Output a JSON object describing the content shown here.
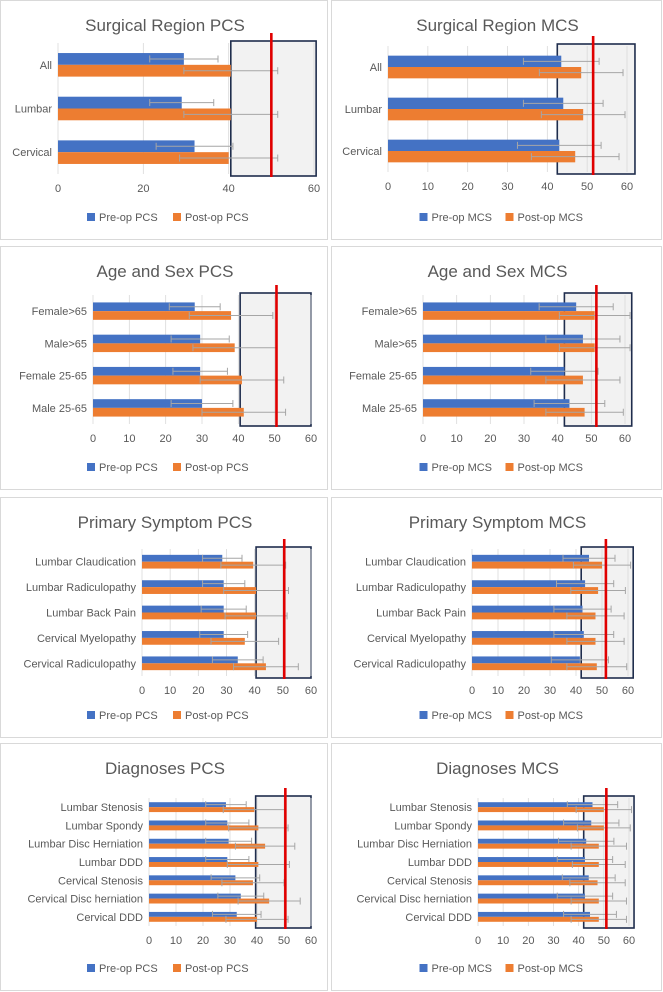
{
  "colors": {
    "pre": "#4472C4",
    "post": "#ED7D31",
    "threshold": "#E00000",
    "norm_band_fill": "#F2F2F2",
    "norm_band_border": "#1F2D4D",
    "axis_text": "#595959",
    "title_text": "#595959",
    "error_bar": "#A6A6A6",
    "gridline": "#D9D9D9"
  },
  "chart_data": [
    {
      "type": "bar",
      "orientation": "horizontal",
      "title": "Surgical Region PCS",
      "categories": [
        "All",
        "Lumbar",
        "Cervical"
      ],
      "series": [
        {
          "name": "Pre-op PCS",
          "values": [
            29.5,
            29,
            32
          ],
          "error": [
            8,
            7.5,
            9
          ]
        },
        {
          "name": "Post-op PCS",
          "values": [
            40.5,
            40.5,
            40
          ],
          "error": [
            11,
            11,
            11.5
          ]
        }
      ],
      "xlim": [
        0,
        60
      ],
      "xticks": [
        0,
        20,
        40,
        60
      ],
      "threshold": 50,
      "norm_band": [
        40.5,
        60.5
      ],
      "legend": [
        "Pre-op PCS",
        "Post-op PCS"
      ]
    },
    {
      "type": "bar",
      "orientation": "horizontal",
      "title": "Surgical Region MCS",
      "categories": [
        "All",
        "Lumbar",
        "Cervical"
      ],
      "series": [
        {
          "name": "Pre-op MCS",
          "values": [
            43.5,
            44,
            43
          ],
          "error": [
            9.5,
            10,
            10.5
          ]
        },
        {
          "name": "Post-op MCS",
          "values": [
            48.5,
            49,
            47
          ],
          "error": [
            10.5,
            10.5,
            11
          ]
        }
      ],
      "xlim": [
        0,
        60
      ],
      "xticks": [
        0,
        10,
        20,
        30,
        40,
        50,
        60
      ],
      "threshold": 51.5,
      "norm_band": [
        42.5,
        62
      ],
      "legend": [
        "Pre-op MCS",
        "Post-op MCS"
      ]
    },
    {
      "type": "bar",
      "orientation": "horizontal",
      "title": "Age and Sex PCS",
      "categories": [
        "Female>65",
        "Male>65",
        "Female 25-65",
        "Male 25-65"
      ],
      "series": [
        {
          "name": "Pre-op PCS",
          "values": [
            28,
            29.5,
            29.5,
            30
          ],
          "error": [
            7,
            8,
            7.5,
            8.5
          ]
        },
        {
          "name": "Post-op PCS",
          "values": [
            38,
            39,
            41,
            41.5
          ],
          "error": [
            11.5,
            11.5,
            11.5,
            11.5
          ]
        }
      ],
      "xlim": [
        0,
        60
      ],
      "xticks": [
        0,
        10,
        20,
        30,
        40,
        50,
        60
      ],
      "threshold": 50.5,
      "norm_band": [
        40.5,
        60
      ],
      "legend": [
        "Pre-op PCS",
        "Post-op PCS"
      ]
    },
    {
      "type": "bar",
      "orientation": "horizontal",
      "title": "Age and Sex MCS",
      "categories": [
        "Female>65",
        "Male>65",
        "Female 25-65",
        "Male 25-65"
      ],
      "series": [
        {
          "name": "Pre-op MCS",
          "values": [
            45.5,
            47.5,
            42,
            43.5
          ],
          "error": [
            11,
            11,
            10,
            10.5
          ]
        },
        {
          "name": "Post-op MCS",
          "values": [
            51,
            51,
            47.5,
            48
          ],
          "error": [
            10.5,
            10.5,
            11,
            11.5
          ]
        }
      ],
      "xlim": [
        0,
        60
      ],
      "xticks": [
        0,
        10,
        20,
        30,
        40,
        50,
        60
      ],
      "threshold": 51.5,
      "norm_band": [
        42,
        62
      ],
      "legend": [
        "Pre-op MCS",
        "Post-op MCS"
      ]
    },
    {
      "type": "bar",
      "orientation": "horizontal",
      "title": "Primary Symptom PCS",
      "categories": [
        "Lumbar Claudication",
        "Lumbar Radiculopathy",
        "Lumbar Back Pain",
        "Cervical Myelopathy",
        "Cervical Radiculopathy"
      ],
      "series": [
        {
          "name": "Pre-op PCS",
          "values": [
            28.5,
            29,
            29,
            29,
            34
          ],
          "error": [
            7,
            7.5,
            8,
            8.5,
            9
          ]
        },
        {
          "name": "Post-op PCS",
          "values": [
            39.5,
            40.5,
            40.5,
            36.5,
            44
          ],
          "error": [
            11.5,
            11.5,
            11,
            12,
            11.5
          ]
        }
      ],
      "xlim": [
        0,
        60
      ],
      "xticks": [
        0,
        10,
        20,
        30,
        40,
        50,
        60
      ],
      "threshold": 50.5,
      "norm_band": [
        40.5,
        60
      ],
      "legend": [
        "Pre-op PCS",
        "Post-op PCS"
      ]
    },
    {
      "type": "bar",
      "orientation": "horizontal",
      "title": "Primary Symptom MCS",
      "categories": [
        "Lumbar Claudication",
        "Lumbar Radiculopathy",
        "Lumbar Back Pain",
        "Cervical Myelopathy",
        "Cervical Radiculopathy"
      ],
      "series": [
        {
          "name": "Pre-op MCS",
          "values": [
            45,
            43.5,
            42.5,
            43,
            41.5
          ],
          "error": [
            10,
            11,
            11,
            11.5,
            11
          ]
        },
        {
          "name": "Post-op MCS",
          "values": [
            50,
            48.5,
            47.5,
            47.5,
            48
          ],
          "error": [
            11,
            10.5,
            11,
            11,
            11.5
          ]
        }
      ],
      "xlim": [
        0,
        60
      ],
      "xticks": [
        0,
        10,
        20,
        30,
        40,
        50,
        60
      ],
      "threshold": 51.5,
      "norm_band": [
        42,
        62
      ],
      "legend": [
        "Pre-op MCS",
        "Post-op MCS"
      ]
    },
    {
      "type": "bar",
      "orientation": "horizontal",
      "title": "Diagnoses PCS",
      "categories": [
        "Lumbar Stenosis",
        "Lumbar Spondy",
        "Lumbar Disc Herniation",
        "Lumbar DDD",
        "Cervical Stenosis",
        "Cervical Disc herniation",
        "Cervical DDD"
      ],
      "series": [
        {
          "name": "Pre-op PCS",
          "values": [
            28.5,
            29,
            29.5,
            29,
            32,
            34,
            32.5
          ],
          "error": [
            7.5,
            8,
            8.5,
            8,
            9,
            8.5,
            9
          ]
        },
        {
          "name": "Post-op PCS",
          "values": [
            39,
            40.5,
            43,
            40.5,
            38.5,
            44.5,
            40
          ],
          "error": [
            11.5,
            11,
            11,
            11.5,
            11.5,
            11.5,
            11.5
          ]
        }
      ],
      "xlim": [
        0,
        60
      ],
      "xticks": [
        0,
        10,
        20,
        30,
        40,
        50,
        60
      ],
      "threshold": 50.5,
      "norm_band": [
        39.5,
        60
      ],
      "legend": [
        "Pre-op PCS",
        "Post-op PCS"
      ]
    },
    {
      "type": "bar",
      "orientation": "horizontal",
      "title": "Diagnoses MCS",
      "categories": [
        "Lumbar Stenosis",
        "Lumbar Spondy",
        "Lumbar Disc Herniation",
        "Lumbar DDD",
        "Cervical Stenosis",
        "Cervical Disc herniation",
        "Cervical DDD"
      ],
      "series": [
        {
          "name": "Pre-op MCS",
          "values": [
            45.5,
            45,
            43,
            42.5,
            44,
            42.5,
            44.5
          ],
          "error": [
            10,
            11,
            11,
            11,
            10.5,
            11,
            10.5
          ]
        },
        {
          "name": "Post-op MCS",
          "values": [
            50,
            50,
            48,
            48,
            47.5,
            48,
            48
          ],
          "error": [
            11,
            10.5,
            11,
            10.5,
            11,
            11,
            11
          ]
        }
      ],
      "xlim": [
        0,
        60
      ],
      "xticks": [
        0,
        10,
        20,
        30,
        40,
        50,
        60
      ],
      "threshold": 51,
      "norm_band": [
        42,
        62
      ],
      "legend": [
        "Pre-op MCS",
        "Post-op MCS"
      ]
    }
  ]
}
